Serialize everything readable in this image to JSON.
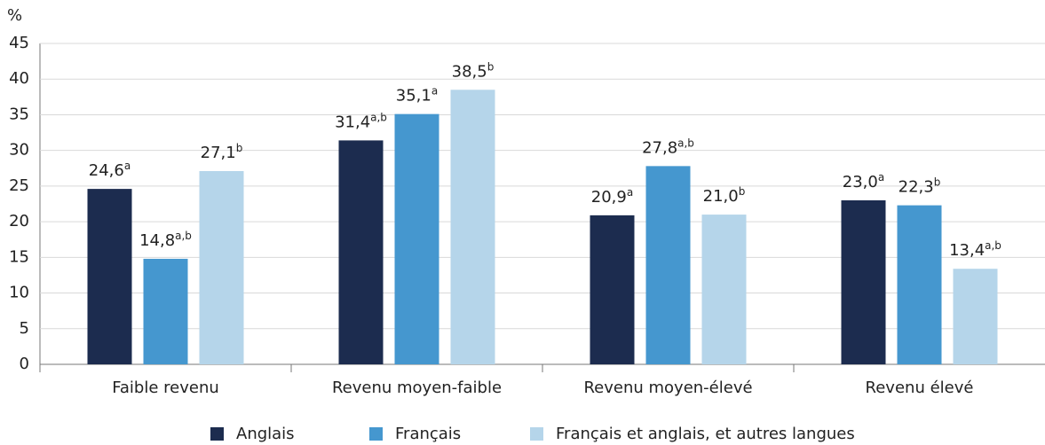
{
  "chart_data": {
    "type": "bar",
    "y_label": "%",
    "categories": [
      "Faible revenu",
      "Revenu moyen-faible",
      "Revenu moyen-élevé",
      "Revenu élevé"
    ],
    "series": [
      {
        "name": "Anglais",
        "color": "#1c2c4f",
        "values": [
          24.6,
          31.4,
          20.9,
          23.0
        ],
        "value_labels": [
          "24,6",
          "31,4",
          "20,9",
          "23,0"
        ],
        "value_notes": [
          "a",
          "a,b",
          "a",
          "a"
        ]
      },
      {
        "name": "Français",
        "color": "#4597cf",
        "values": [
          14.8,
          35.1,
          27.8,
          22.3
        ],
        "value_labels": [
          "14,8",
          "35,1",
          "27,8",
          "22,3"
        ],
        "value_notes": [
          "a,b",
          "a",
          "a,b",
          "b"
        ]
      },
      {
        "name": "Français et anglais, et autres langues",
        "color": "#b5d5ea",
        "values": [
          27.1,
          38.5,
          21.0,
          13.4
        ],
        "value_labels": [
          "27,1",
          "38,5",
          "21,0",
          "13,4"
        ],
        "value_notes": [
          "b",
          "b",
          "b",
          "a,b"
        ]
      }
    ],
    "ylim": [
      0,
      45
    ],
    "yticks": [
      0,
      5,
      10,
      15,
      20,
      25,
      30,
      35,
      40,
      45
    ],
    "grid": true,
    "legend": "bottom"
  }
}
